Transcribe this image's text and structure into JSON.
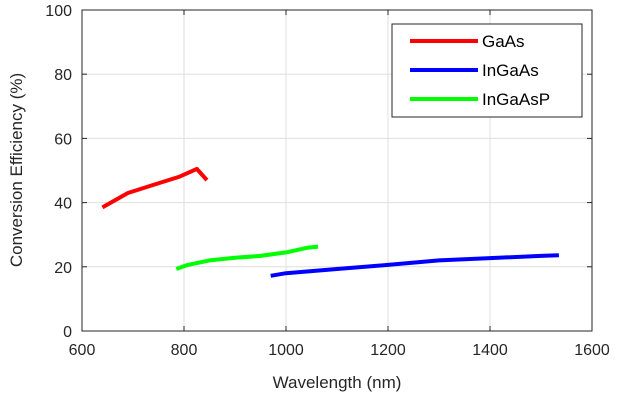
{
  "chart_data": {
    "type": "line",
    "title": "",
    "xlabel": "Wavelength (nm)",
    "ylabel": "Conversion Efficiency (%)",
    "xlim": [
      600,
      1600
    ],
    "ylim": [
      0,
      100
    ],
    "xticks": [
      "600",
      "800",
      "1000",
      "1200",
      "1400",
      "1600"
    ],
    "yticks": [
      "0",
      "20",
      "40",
      "60",
      "80",
      "100"
    ],
    "grid": true,
    "legend_position": "top-right",
    "series": [
      {
        "name": "GaAs",
        "color": "#ff0000",
        "x": [
          640,
          690,
          740,
          790,
          825,
          845
        ],
        "y": [
          38.5,
          43,
          45.5,
          48,
          50.5,
          47
        ]
      },
      {
        "name": "InGaAs",
        "color": "#0000ff",
        "x": [
          970,
          1000,
          1100,
          1200,
          1300,
          1400,
          1500,
          1535
        ],
        "y": [
          17.2,
          18,
          19.3,
          20.6,
          22,
          22.7,
          23.4,
          23.6
        ]
      },
      {
        "name": "InGaAsP",
        "color": "#00ff00",
        "x": [
          785,
          805,
          850,
          900,
          950,
          1000,
          1040,
          1063
        ],
        "y": [
          19.3,
          20.5,
          22,
          22.8,
          23.4,
          24.5,
          25.9,
          26.3
        ]
      }
    ]
  }
}
